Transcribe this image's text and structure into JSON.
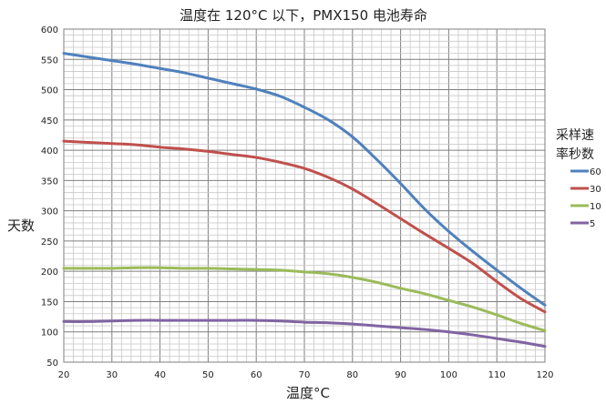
{
  "chart_data": {
    "type": "line",
    "title": "温度在 120°C 以下，PMX150 电池寿命",
    "xlabel": "温度°C",
    "ylabel": "天数",
    "x": [
      20,
      25,
      30,
      35,
      40,
      45,
      50,
      55,
      60,
      65,
      70,
      75,
      80,
      85,
      90,
      95,
      100,
      105,
      110,
      115,
      120
    ],
    "xlim": [
      20,
      120
    ],
    "ylim": [
      50,
      600
    ],
    "x_ticks": [
      20,
      30,
      40,
      50,
      60,
      70,
      80,
      90,
      100,
      110,
      120
    ],
    "y_ticks": [
      50,
      100,
      150,
      200,
      250,
      300,
      350,
      400,
      450,
      500,
      550,
      600
    ],
    "grid": true,
    "legend": {
      "title_line1": "采样速",
      "title_line2": "率秒数",
      "position": "right"
    },
    "series": [
      {
        "name": "60",
        "color": "#4f81bd",
        "values": [
          560,
          554,
          548,
          542,
          535,
          528,
          519,
          510,
          501,
          489,
          471,
          450,
          422,
          385,
          345,
          303,
          266,
          233,
          202,
          172,
          144
        ]
      },
      {
        "name": "30",
        "color": "#c0504d",
        "values": [
          415,
          413,
          411,
          409,
          405,
          402,
          398,
          393,
          388,
          380,
          370,
          355,
          336,
          312,
          287,
          262,
          238,
          213,
          183,
          155,
          133
        ]
      },
      {
        "name": "10",
        "color": "#9bbb59",
        "values": [
          205,
          205,
          205,
          206,
          206,
          205,
          205,
          204,
          203,
          202,
          199,
          196,
          190,
          182,
          172,
          163,
          152,
          141,
          128,
          114,
          102
        ]
      },
      {
        "name": "5",
        "color": "#8064a2",
        "values": [
          117,
          117,
          118,
          119,
          119,
          119,
          119,
          119,
          119,
          118,
          116,
          115,
          113,
          110,
          107,
          104,
          100,
          95,
          89,
          83,
          76
        ]
      }
    ]
  }
}
